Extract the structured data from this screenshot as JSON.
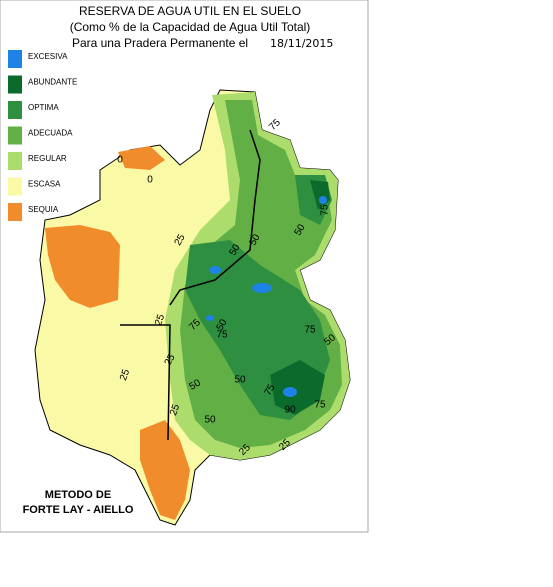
{
  "header": {
    "title": "RESERVA DE AGUA UTIL EN EL SUELO",
    "subtitle": "(Como % de la Capacidad de Agua Util Total)",
    "subtitle2": "Para una Pradera Permanente el",
    "date": "18/11/2015"
  },
  "legend": [
    {
      "label": "EXCESIVA",
      "color": "#1e82e6"
    },
    {
      "label": "ABUNDANTE",
      "color": "#0b6b2c"
    },
    {
      "label": "OPTIMA",
      "color": "#2f8f40"
    },
    {
      "label": "ADECUADA",
      "color": "#62b045"
    },
    {
      "label": "REGULAR",
      "color": "#acdc6c"
    },
    {
      "label": "ESCASA",
      "color": "#fafaa6"
    },
    {
      "label": "SEQUIA",
      "color": "#f08c2c"
    }
  ],
  "contour_labels": [
    0,
    25,
    50,
    75,
    90
  ],
  "method": {
    "line1": "METODO DE",
    "line2": "FORTE LAY - AIELLO"
  }
}
